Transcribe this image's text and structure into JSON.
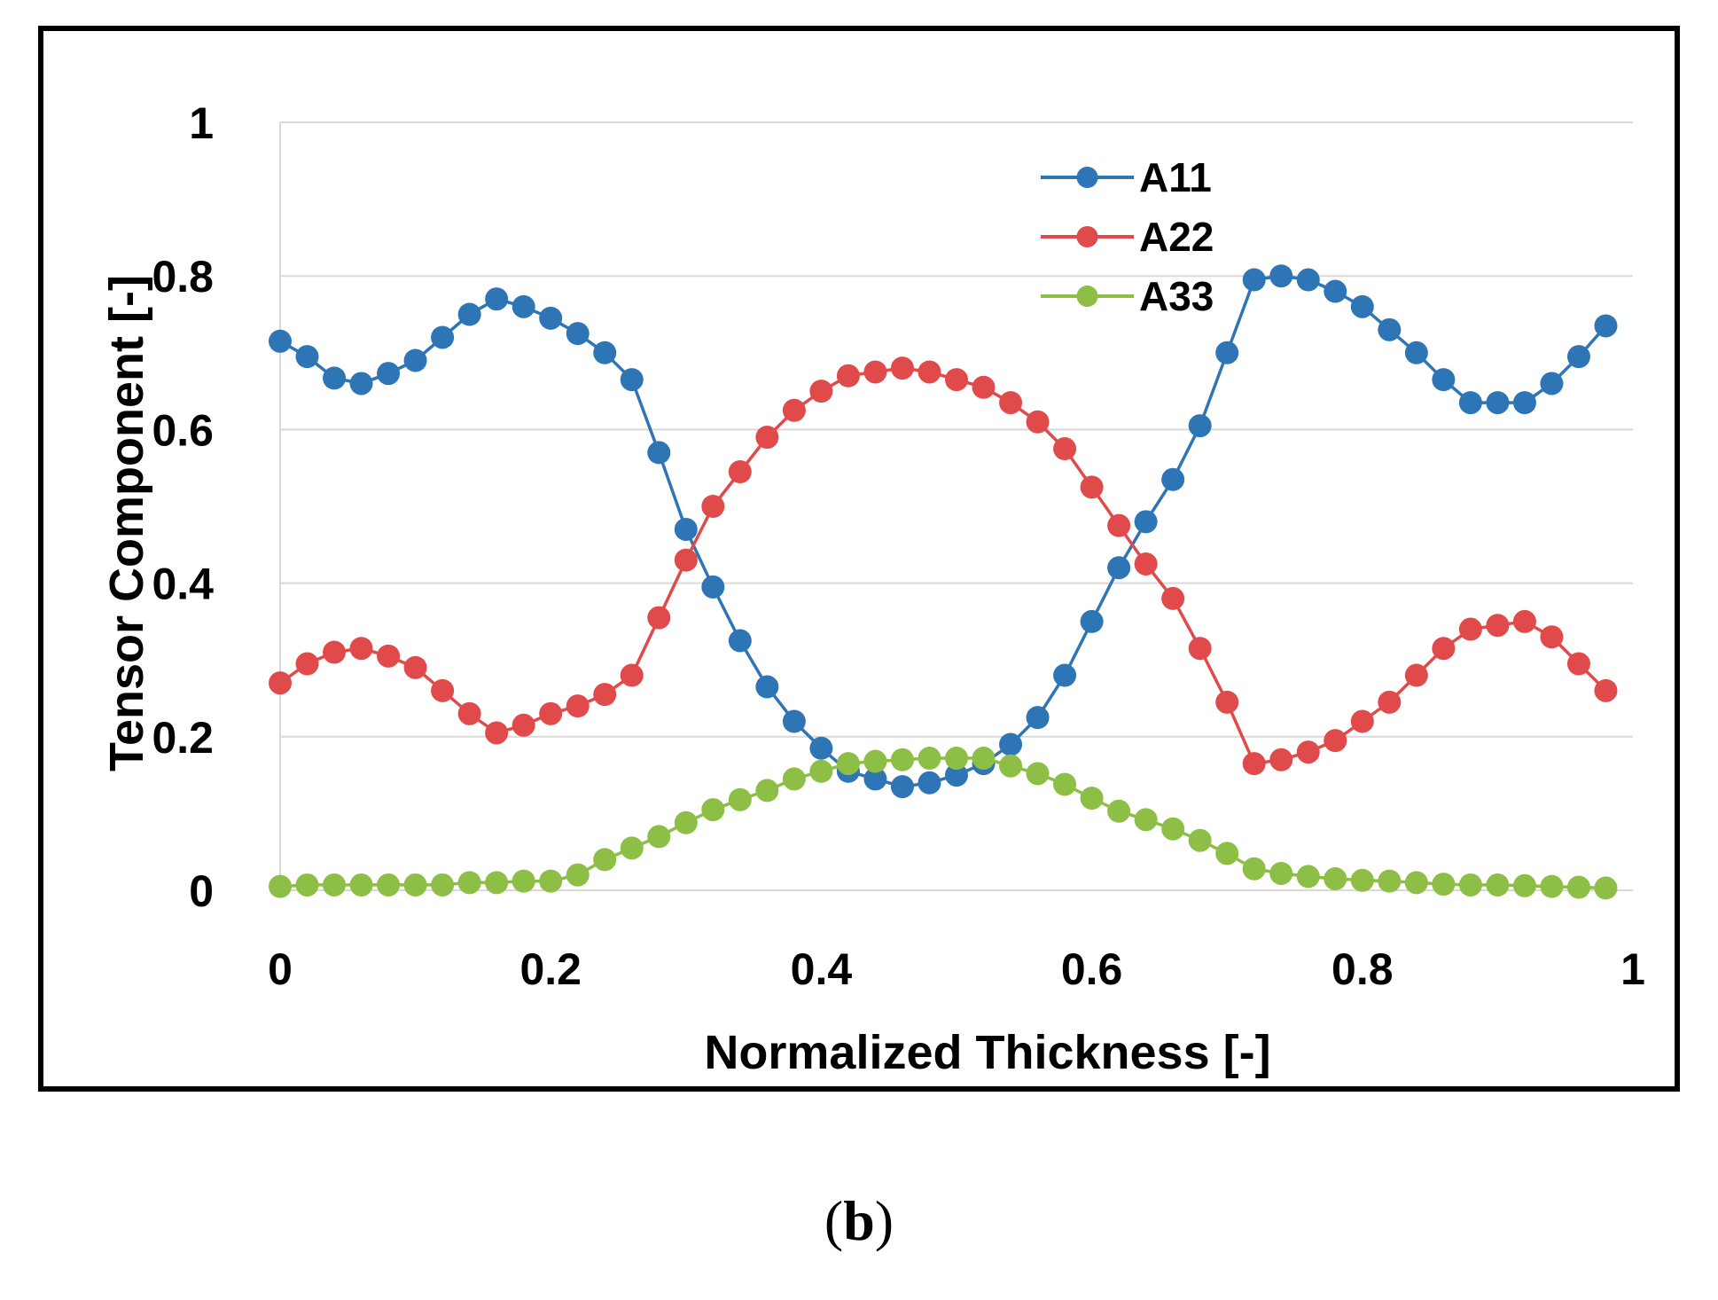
{
  "chart_data": {
    "type": "line",
    "title": "",
    "xlabel": "Normalized Thickness [-]",
    "ylabel": "Tensor Component [-]",
    "xlim": [
      0,
      1
    ],
    "ylim": [
      0,
      1
    ],
    "x_ticks": [
      "0",
      "0.2",
      "0.4",
      "0.6",
      "0.8",
      "1"
    ],
    "y_ticks": [
      "0",
      "0.2",
      "0.4",
      "0.6",
      "0.8",
      "1"
    ],
    "grid": "horizontal",
    "legend_position": "top-right",
    "x": [
      0,
      0.02,
      0.04,
      0.06,
      0.08,
      0.1,
      0.12,
      0.14,
      0.16,
      0.18,
      0.2,
      0.22,
      0.24,
      0.26,
      0.28,
      0.3,
      0.32,
      0.34,
      0.36,
      0.38,
      0.4,
      0.42,
      0.44,
      0.46,
      0.48,
      0.5,
      0.52,
      0.54,
      0.56,
      0.58,
      0.6,
      0.62,
      0.64,
      0.66,
      0.68,
      0.7,
      0.72,
      0.74,
      0.76,
      0.78,
      0.8,
      0.82,
      0.84,
      0.86,
      0.88,
      0.9,
      0.92,
      0.94,
      0.96,
      0.98
    ],
    "series": [
      {
        "name": "A11",
        "color": "#2E75B6",
        "values": [
          0.715,
          0.695,
          0.667,
          0.66,
          0.673,
          0.69,
          0.72,
          0.75,
          0.77,
          0.76,
          0.745,
          0.725,
          0.7,
          0.665,
          0.57,
          0.47,
          0.395,
          0.325,
          0.265,
          0.22,
          0.185,
          0.155,
          0.145,
          0.135,
          0.14,
          0.15,
          0.165,
          0.19,
          0.225,
          0.28,
          0.35,
          0.42,
          0.48,
          0.535,
          0.605,
          0.7,
          0.795,
          0.8,
          0.795,
          0.78,
          0.76,
          0.73,
          0.7,
          0.665,
          0.635,
          0.635,
          0.635,
          0.66,
          0.695,
          0.735
        ]
      },
      {
        "name": "A22",
        "color": "#E04A4A",
        "values": [
          0.27,
          0.295,
          0.31,
          0.315,
          0.305,
          0.29,
          0.26,
          0.23,
          0.205,
          0.215,
          0.23,
          0.24,
          0.255,
          0.28,
          0.355,
          0.43,
          0.5,
          0.545,
          0.59,
          0.625,
          0.65,
          0.67,
          0.675,
          0.68,
          0.675,
          0.665,
          0.655,
          0.635,
          0.61,
          0.575,
          0.525,
          0.475,
          0.425,
          0.38,
          0.315,
          0.245,
          0.165,
          0.17,
          0.18,
          0.195,
          0.22,
          0.245,
          0.28,
          0.315,
          0.34,
          0.345,
          0.35,
          0.33,
          0.295,
          0.26
        ]
      },
      {
        "name": "A33",
        "color": "#8DBE45",
        "values": [
          0.005,
          0.007,
          0.007,
          0.007,
          0.007,
          0.007,
          0.007,
          0.01,
          0.01,
          0.012,
          0.012,
          0.02,
          0.04,
          0.055,
          0.07,
          0.088,
          0.105,
          0.118,
          0.13,
          0.145,
          0.155,
          0.165,
          0.168,
          0.17,
          0.172,
          0.172,
          0.172,
          0.162,
          0.152,
          0.138,
          0.12,
          0.103,
          0.092,
          0.08,
          0.065,
          0.048,
          0.028,
          0.022,
          0.018,
          0.015,
          0.013,
          0.012,
          0.01,
          0.008,
          0.007,
          0.007,
          0.006,
          0.005,
          0.004,
          0.003
        ]
      }
    ]
  },
  "caption": {
    "open": "(",
    "label": "b",
    "close": ")"
  }
}
